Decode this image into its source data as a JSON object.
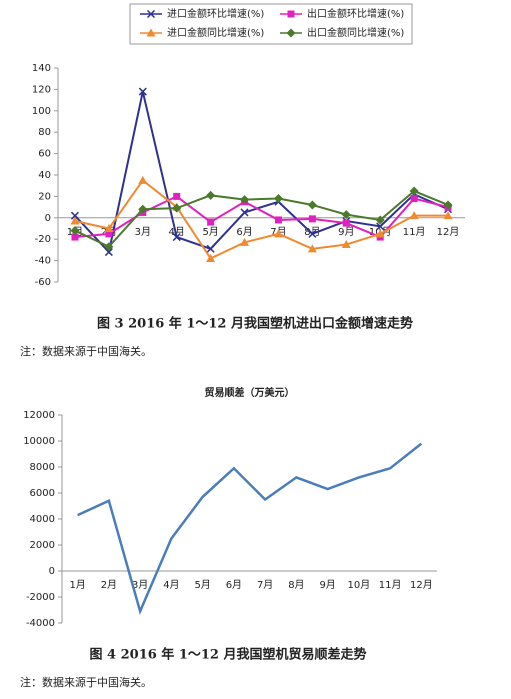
{
  "chart_data": [
    {
      "type": "line",
      "legend": "top",
      "categories": [
        "1月",
        "2月",
        "3月",
        "4月",
        "5月",
        "6月",
        "7月",
        "8月",
        "9月",
        "10月",
        "11月",
        "12月"
      ],
      "series": [
        {
          "name": "进口金额环比增速(%)",
          "color": "#2e3192",
          "marker": "x",
          "values": [
            2,
            -32,
            118,
            -18,
            -29,
            5,
            15,
            -15,
            -3,
            -8,
            22,
            8
          ]
        },
        {
          "name": "出口金额环比增速(%)",
          "color": "#e020c0",
          "marker": "square",
          "values": [
            -18,
            -15,
            5,
            20,
            -4,
            15,
            -2,
            -1,
            -5,
            -18,
            18,
            10
          ]
        },
        {
          "name": "进口金额同比增速(%)",
          "color": "#f08a30",
          "marker": "triangle",
          "values": [
            -3,
            -10,
            35,
            10,
            -38,
            -23,
            -15,
            -29,
            -25,
            -15,
            2,
            2
          ]
        },
        {
          "name": "出口金额同比增速(%)",
          "color": "#4a7a2a",
          "marker": "diamond",
          "values": [
            -12,
            -27,
            8,
            9,
            21,
            17,
            18,
            12,
            3,
            -2,
            25,
            12
          ]
        }
      ],
      "ylim": [
        -60,
        140
      ],
      "yticks": [
        -60,
        -40,
        -20,
        0,
        20,
        40,
        60,
        80,
        100,
        120,
        140
      ]
    },
    {
      "type": "line",
      "title": "贸易顺差（万美元）",
      "categories": [
        "1月",
        "2月",
        "3月",
        "4月",
        "5月",
        "6月",
        "7月",
        "8月",
        "9月",
        "10月",
        "11月",
        "12月"
      ],
      "values": [
        4300,
        5400,
        -3100,
        2500,
        5700,
        7900,
        5500,
        7200,
        6300,
        7200,
        7900,
        9800
      ],
      "color": "#4a7ebb",
      "ylim": [
        -4000,
        12000
      ],
      "yticks": [
        -4000,
        -2000,
        0,
        2000,
        4000,
        6000,
        8000,
        10000,
        12000
      ]
    }
  ],
  "captions": [
    "图 3 2016 年 1～12 月我国塑机进出口金额增速走势",
    "图 4 2016 年 1～12 月我国塑机贸易顺差走势"
  ],
  "notes": [
    "注：数据来源于中国海关。",
    "注：数据来源于中国海关。"
  ]
}
